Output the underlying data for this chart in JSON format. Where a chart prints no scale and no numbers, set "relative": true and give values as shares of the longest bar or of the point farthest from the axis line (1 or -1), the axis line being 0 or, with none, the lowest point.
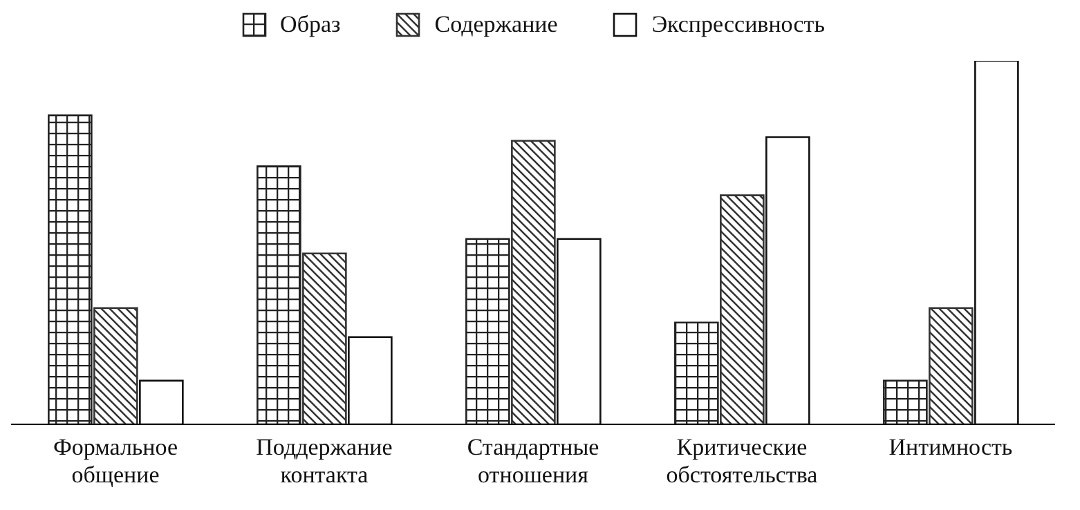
{
  "chart_data": {
    "type": "bar",
    "relative": true,
    "categories": [
      "Формальное общение",
      "Поддержание контакта",
      "Стандартные отношения",
      "Критические обстоятельства",
      "Интимность"
    ],
    "series": [
      {
        "name": "Образ",
        "color": "#222222",
        "values": [
          0.85,
          0.71,
          0.51,
          0.28,
          0.12
        ]
      },
      {
        "name": "Содержание",
        "color": "#333333",
        "values": [
          0.32,
          0.47,
          0.78,
          0.63,
          0.32
        ]
      },
      {
        "name": "Экспрессивность",
        "color": "#111111",
        "values": [
          0.12,
          0.24,
          0.51,
          0.79,
          1
        ]
      }
    ],
    "legend": "top",
    "grid": false
  }
}
